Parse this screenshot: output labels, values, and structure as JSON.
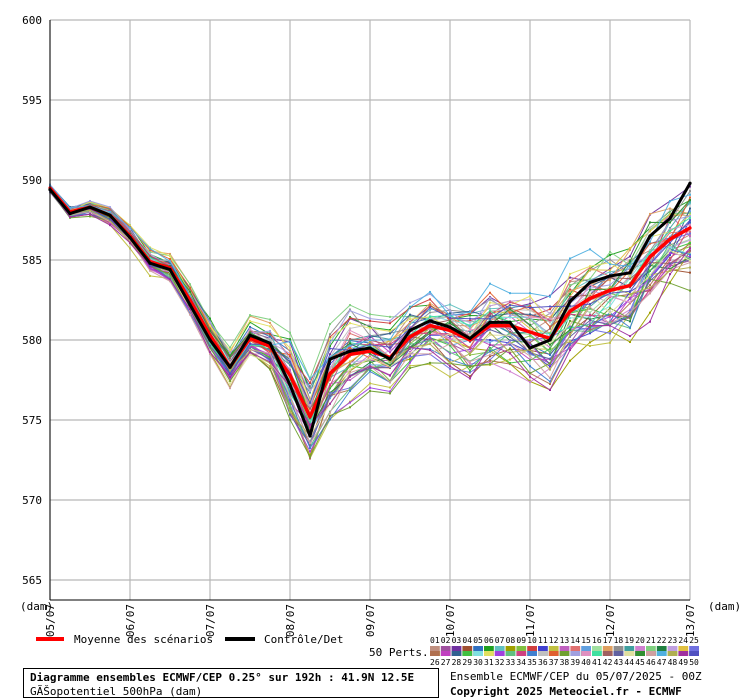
{
  "chart_data": {
    "type": "line",
    "title": "Diagramme ensembles ECMWF/CEP 0.25° sur 192h : 41.9N 12.5E",
    "ylabel": "(dam)",
    "ylabel_right": "(dam)",
    "ylim": [
      564,
      600
    ],
    "yticks": [
      565,
      570,
      575,
      580,
      585,
      590,
      595,
      600
    ],
    "x_tick_labels": [
      "05/07",
      "06/07",
      "07/07",
      "08/07",
      "09/07",
      "10/07",
      "11/07",
      "12/07",
      "13/07"
    ],
    "x_hours_range": [
      0,
      192
    ],
    "grid": true,
    "mean_series": {
      "name": "Moyenne des scénarios",
      "color": "#ff0000",
      "x": [
        0,
        6,
        12,
        18,
        24,
        30,
        36,
        42,
        48,
        54,
        60,
        66,
        72,
        78,
        84,
        90,
        96,
        102,
        108,
        114,
        120,
        126,
        132,
        138,
        144,
        150,
        156,
        162,
        168,
        174,
        180,
        186,
        192
      ],
      "values": [
        589.5,
        588.0,
        588.3,
        587.8,
        586.5,
        584.9,
        584.5,
        582.5,
        580.3,
        578.3,
        580.1,
        579.6,
        577.8,
        575.2,
        577.9,
        579.1,
        579.3,
        578.9,
        580.2,
        580.9,
        580.6,
        580.0,
        580.9,
        580.9,
        580.5,
        580.1,
        581.8,
        582.6,
        583.1,
        583.4,
        585.2,
        586.3,
        587.0
      ]
    },
    "control_series": {
      "name": "Contrôle/Det",
      "color": "#000000",
      "x": [
        0,
        6,
        12,
        18,
        24,
        30,
        36,
        42,
        48,
        54,
        60,
        66,
        72,
        78,
        84,
        90,
        96,
        102,
        108,
        114,
        120,
        126,
        132,
        138,
        144,
        150,
        156,
        162,
        168,
        174,
        180,
        186,
        192
      ],
      "values": [
        589.4,
        587.9,
        588.3,
        587.8,
        586.4,
        584.8,
        584.4,
        582.2,
        580.0,
        578.3,
        580.3,
        579.8,
        577.2,
        574.0,
        578.8,
        579.3,
        579.5,
        578.8,
        580.6,
        581.2,
        580.8,
        580.1,
        581.1,
        581.1,
        579.5,
        580.0,
        582.4,
        583.6,
        584.0,
        584.2,
        586.5,
        587.6,
        589.8
      ]
    },
    "perturbations": {
      "label": "50 Perts.",
      "count": 50,
      "ids": [
        "01",
        "02",
        "03",
        "04",
        "05",
        "06",
        "07",
        "08",
        "09",
        "10",
        "11",
        "12",
        "13",
        "14",
        "15",
        "16",
        "17",
        "18",
        "19",
        "20",
        "21",
        "22",
        "23",
        "24",
        "25",
        "26",
        "27",
        "28",
        "29",
        "30",
        "31",
        "32",
        "33",
        "34",
        "35",
        "36",
        "37",
        "38",
        "39",
        "40",
        "41",
        "42",
        "43",
        "44",
        "45",
        "46",
        "47",
        "48",
        "49",
        "50"
      ],
      "colors": [
        "#c09080",
        "#a050a0",
        "#7030a0",
        "#a05030",
        "#3070c0",
        "#20a020",
        "#60c0c0",
        "#a0a000",
        "#80c040",
        "#d04040",
        "#4040d0",
        "#c0c040",
        "#c060c0",
        "#e07070",
        "#60a0e0",
        "#a0e0a0",
        "#e0a060",
        "#909090",
        "#40a0a0",
        "#d080d0",
        "#80d080",
        "#208040",
        "#c0a0e0",
        "#e0c040",
        "#7070e0",
        "#b07050",
        "#c040c0",
        "#306090",
        "#40c040",
        "#80e0e0",
        "#e0e060",
        "#a040e0",
        "#60c080",
        "#d04080",
        "#4080d0",
        "#c0c0c0",
        "#e06030",
        "#70a030",
        "#a0a0e0",
        "#e090c0",
        "#40e0a0",
        "#a06060",
        "#6060a0",
        "#e0e0a0",
        "#309030",
        "#d0a0a0",
        "#50b0e0",
        "#b0b050",
        "#a030a0",
        "#5050c0"
      ]
    }
  },
  "info": {
    "line1": "Diagramme ensembles ECMWF/CEP 0.25° sur 192h : 41.9N 12.5E",
    "line2": "GÃŠopotentiel 500hPa (dam)",
    "run": "Ensemble ECMWF/CEP du 05/07/2025 - 00Z",
    "copyright": "Copyright 2025 Meteociel.fr - ECMWF"
  }
}
